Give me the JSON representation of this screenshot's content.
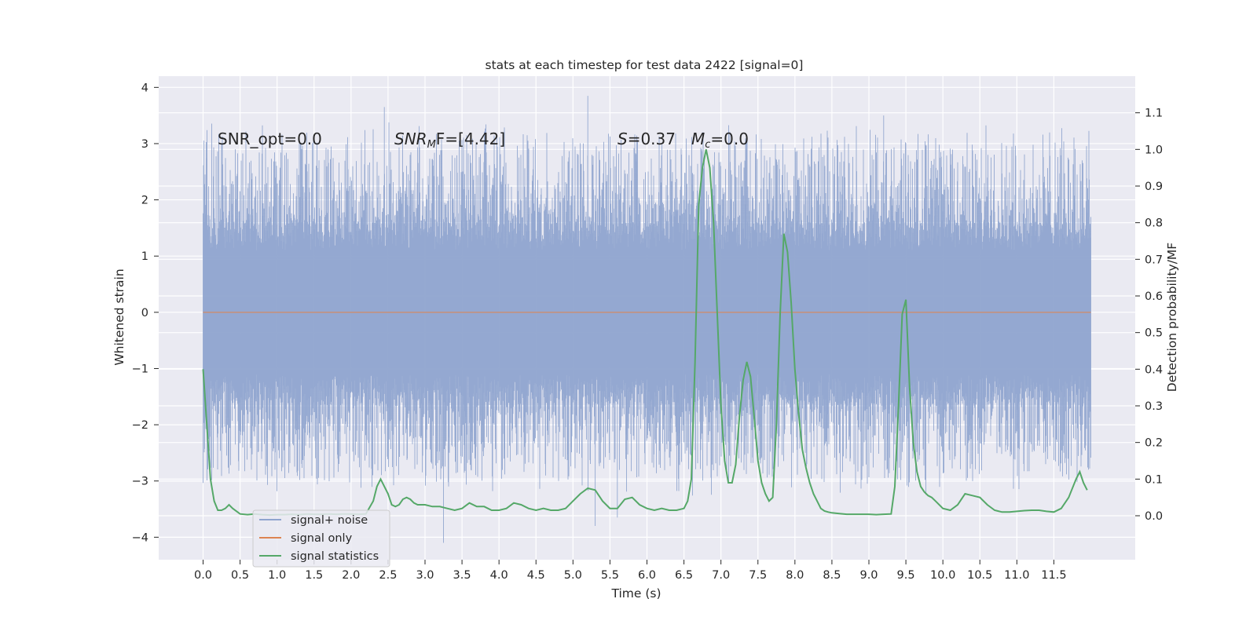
{
  "chart_data": {
    "type": "line",
    "title": "stats at each timestep for test data 2422 [signal=0]",
    "xlabel": "Time (s)",
    "ylabel": "Whitened strain",
    "y2label": "Detection probability/MF",
    "xlim": [
      -0.6,
      12.6
    ],
    "ylim": [
      -4.4,
      4.2
    ],
    "y2lim": [
      -0.12,
      1.2
    ],
    "x_ticks": [
      "0.0",
      "0.5",
      "1.0",
      "1.5",
      "2.0",
      "2.5",
      "3.0",
      "3.5",
      "4.0",
      "4.5",
      "5.0",
      "5.5",
      "6.0",
      "6.5",
      "7.0",
      "7.5",
      "8.0",
      "8.5",
      "9.0",
      "9.5",
      "10.0",
      "10.5",
      "11.0",
      "11.5"
    ],
    "y_ticks": [
      4,
      3,
      2,
      1,
      0,
      -1,
      -2,
      -3,
      -4
    ],
    "y_tick_labels": [
      "4",
      "3",
      "2",
      "1",
      "0",
      "−1",
      "−2",
      "−3",
      "−4"
    ],
    "y2_ticks": [
      1.1,
      1.0,
      0.9,
      0.8,
      0.7,
      0.6,
      0.5,
      0.4,
      0.3,
      0.2,
      0.1,
      0.0
    ],
    "y2_tick_labels": [
      "1.1",
      "1.0",
      "0.9",
      "0.8",
      "0.7",
      "0.6",
      "0.5",
      "0.4",
      "0.3",
      "0.2",
      "0.1",
      "0.0"
    ],
    "grid": true,
    "legend_position": "lower-left",
    "annotations": [
      "SNR_opt=0.0",
      "S=0.37",
      "=0.0",
      "=[4.42]"
    ],
    "annotation_parts": {
      "snr_mf_prefix": "SNR",
      "snr_mf_sub": "M",
      "snr_mf_suffix": "F=[4.42]",
      "s_symbol": "S",
      "s_value": "=0.37",
      "mc_symbol": "M",
      "mc_sub": "c",
      "mc_value": "=0.0"
    },
    "series": [
      {
        "name": "signal+ noise",
        "color": "#8fa4cf",
        "x_range": [
          0.0,
          12.0
        ],
        "y_range": [
          -4.1,
          3.85
        ],
        "peaks": [
          [
            2.45,
            3.65
          ],
          [
            5.2,
            3.85
          ],
          [
            9.2,
            3.5
          ],
          [
            3.25,
            -4.1
          ],
          [
            5.3,
            -3.8
          ],
          [
            5.6,
            -3.65
          ]
        ]
      },
      {
        "name": "signal only",
        "color": "#dd8452",
        "x_range": [
          0.0,
          12.0
        ],
        "values_constant": 0.0
      },
      {
        "name": "signal statistics",
        "color": "#55a868",
        "x": [
          0.0,
          0.05,
          0.1,
          0.15,
          0.2,
          0.25,
          0.3,
          0.35,
          0.4,
          0.5,
          0.6,
          0.7,
          0.8,
          0.9,
          1.0,
          1.1,
          1.2,
          1.3,
          1.4,
          1.5,
          1.6,
          1.7,
          1.8,
          1.9,
          2.0,
          2.1,
          2.2,
          2.3,
          2.35,
          2.4,
          2.45,
          2.5,
          2.55,
          2.6,
          2.65,
          2.7,
          2.75,
          2.8,
          2.85,
          2.9,
          3.0,
          3.1,
          3.2,
          3.3,
          3.4,
          3.5,
          3.6,
          3.7,
          3.8,
          3.9,
          4.0,
          4.1,
          4.2,
          4.3,
          4.4,
          4.5,
          4.6,
          4.7,
          4.8,
          4.9,
          5.0,
          5.1,
          5.2,
          5.3,
          5.4,
          5.5,
          5.6,
          5.7,
          5.8,
          5.9,
          6.0,
          6.1,
          6.2,
          6.3,
          6.4,
          6.5,
          6.55,
          6.6,
          6.65,
          6.7,
          6.75,
          6.8,
          6.85,
          6.9,
          6.95,
          7.0,
          7.05,
          7.1,
          7.15,
          7.2,
          7.25,
          7.3,
          7.35,
          7.4,
          7.45,
          7.5,
          7.55,
          7.6,
          7.65,
          7.7,
          7.75,
          7.8,
          7.85,
          7.9,
          7.95,
          8.0,
          8.05,
          8.1,
          8.15,
          8.2,
          8.25,
          8.3,
          8.35,
          8.4,
          8.45,
          8.5,
          8.6,
          8.7,
          8.8,
          8.9,
          9.0,
          9.1,
          9.2,
          9.3,
          9.35,
          9.4,
          9.45,
          9.5,
          9.55,
          9.6,
          9.65,
          9.7,
          9.75,
          9.8,
          9.85,
          9.9,
          10.0,
          10.1,
          10.2,
          10.3,
          10.4,
          10.5,
          10.6,
          10.7,
          10.8,
          10.9,
          11.0,
          11.1,
          11.2,
          11.3,
          11.4,
          11.5,
          11.6,
          11.7,
          11.8,
          11.85,
          11.9,
          11.95
        ],
        "values": [
          0.4,
          0.25,
          0.1,
          0.04,
          0.015,
          0.015,
          0.02,
          0.03,
          0.02,
          0.005,
          0.003,
          0.005,
          0.003,
          0.002,
          0.003,
          0.003,
          0.004,
          0.003,
          0.005,
          0.004,
          0.004,
          0.005,
          0.004,
          0.005,
          0.005,
          0.004,
          0.005,
          0.04,
          0.08,
          0.1,
          0.08,
          0.06,
          0.03,
          0.025,
          0.03,
          0.045,
          0.05,
          0.045,
          0.035,
          0.03,
          0.03,
          0.025,
          0.025,
          0.02,
          0.015,
          0.02,
          0.035,
          0.025,
          0.025,
          0.015,
          0.015,
          0.02,
          0.035,
          0.03,
          0.02,
          0.015,
          0.02,
          0.015,
          0.015,
          0.02,
          0.04,
          0.06,
          0.075,
          0.07,
          0.04,
          0.02,
          0.02,
          0.045,
          0.05,
          0.03,
          0.02,
          0.015,
          0.02,
          0.015,
          0.015,
          0.02,
          0.04,
          0.1,
          0.42,
          0.85,
          0.95,
          1.0,
          0.95,
          0.8,
          0.55,
          0.3,
          0.15,
          0.09,
          0.09,
          0.14,
          0.27,
          0.37,
          0.42,
          0.38,
          0.27,
          0.15,
          0.09,
          0.06,
          0.04,
          0.05,
          0.25,
          0.55,
          0.77,
          0.72,
          0.58,
          0.4,
          0.28,
          0.18,
          0.13,
          0.09,
          0.06,
          0.04,
          0.02,
          0.013,
          0.01,
          0.008,
          0.006,
          0.004,
          0.004,
          0.004,
          0.004,
          0.003,
          0.004,
          0.005,
          0.08,
          0.3,
          0.55,
          0.59,
          0.35,
          0.2,
          0.12,
          0.08,
          0.065,
          0.055,
          0.05,
          0.04,
          0.02,
          0.015,
          0.03,
          0.06,
          0.055,
          0.05,
          0.03,
          0.015,
          0.01,
          0.01,
          0.012,
          0.014,
          0.015,
          0.015,
          0.012,
          0.01,
          0.02,
          0.05,
          0.1,
          0.12,
          0.09,
          0.07
        ]
      }
    ]
  }
}
